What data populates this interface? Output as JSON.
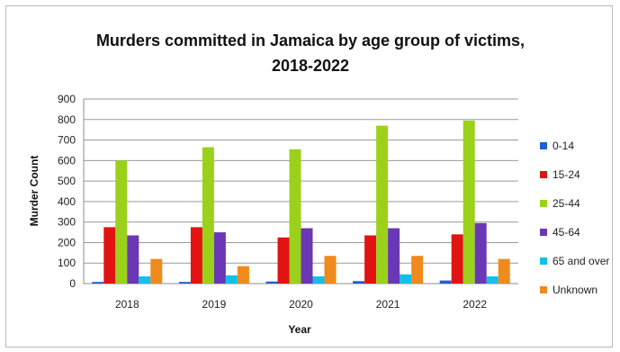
{
  "chart_data": {
    "type": "bar",
    "title_lines": [
      "Murders committed in Jamaica by age group of victims,",
      "2018-2022"
    ],
    "xlabel": "Year",
    "ylabel": "Murder Count",
    "categories": [
      "2018",
      "2019",
      "2020",
      "2021",
      "2022"
    ],
    "ylim": [
      0,
      900
    ],
    "yticks": [
      0,
      100,
      200,
      300,
      400,
      500,
      600,
      700,
      800,
      900
    ],
    "grid": true,
    "legend_position": "right",
    "series": [
      {
        "name": "0-14",
        "color": "#1f5fd0",
        "values": [
          8,
          8,
          10,
          12,
          15
        ]
      },
      {
        "name": "15-24",
        "color": "#e11313",
        "values": [
          275,
          275,
          225,
          235,
          240
        ]
      },
      {
        "name": "25-44",
        "color": "#9bd11b",
        "values": [
          600,
          665,
          655,
          770,
          795
        ]
      },
      {
        "name": "45-64",
        "color": "#6a38b4",
        "values": [
          235,
          250,
          270,
          270,
          295
        ]
      },
      {
        "name": "65 and over",
        "color": "#14bfe8",
        "values": [
          35,
          40,
          35,
          45,
          35
        ]
      },
      {
        "name": "Unknown",
        "color": "#f08a1c",
        "values": [
          120,
          85,
          135,
          135,
          120
        ]
      }
    ]
  }
}
